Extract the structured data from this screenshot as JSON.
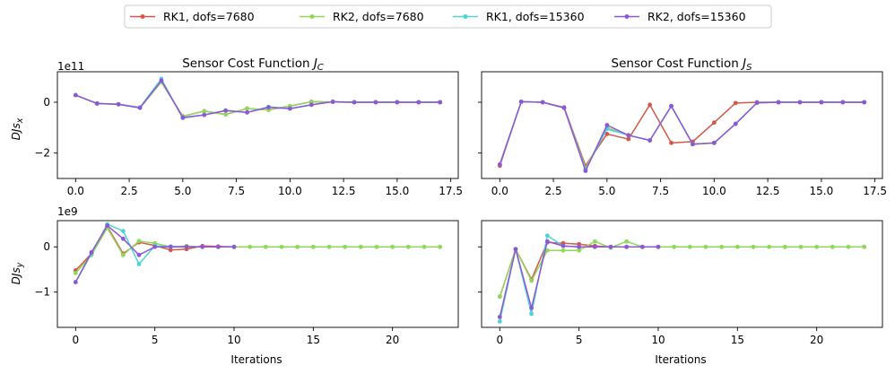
{
  "legend": {
    "entries": [
      {
        "label": "RK1, dofs=7680",
        "color": "#d4574a"
      },
      {
        "label": "RK2, dofs=7680",
        "color": "#8fd85a"
      },
      {
        "label": "RK1, dofs=15360",
        "color": "#4fd2d8"
      },
      {
        "label": "RK2, dofs=15360",
        "color": "#8f57d6"
      }
    ]
  },
  "chart_data": [
    {
      "type": "line",
      "title": "Sensor Cost Function J_C",
      "title_main": "Sensor Cost Function ",
      "title_sym": "J",
      "title_sub": "C",
      "ylabel_main": "DJs",
      "ylabel_sub": "x",
      "offset_base": "1e",
      "offset_exp": "11",
      "xlim": [
        -0.85,
        17.85
      ],
      "ylim": [
        -3.0,
        1.2
      ],
      "xticks": [
        0,
        2.5,
        5,
        7.5,
        10,
        12.5,
        15,
        17.5
      ],
      "xtick_labels": [
        "0.0",
        "2.5",
        "5.0",
        "7.5",
        "10.0",
        "12.5",
        "15.0",
        "17.5"
      ],
      "yticks": [
        -2,
        0
      ],
      "ytick_labels": [
        "−2",
        "0"
      ],
      "series": [
        {
          "x": [
            0,
            1,
            2,
            3,
            4,
            5,
            6,
            7,
            8,
            9,
            10,
            11,
            12,
            13,
            14,
            15,
            16,
            17
          ],
          "y": [
            0.28,
            -0.05,
            -0.08,
            -0.22,
            0.8,
            -0.55,
            -0.35,
            -0.48,
            -0.25,
            -0.3,
            -0.15,
            0.02,
            0.01,
            0,
            0,
            0,
            0,
            0
          ]
        },
        {
          "x": [
            0,
            1,
            2,
            3,
            4,
            5,
            6,
            7,
            8,
            9,
            10,
            11,
            12,
            13,
            14,
            15,
            16,
            17
          ],
          "y": [
            0.28,
            -0.05,
            -0.08,
            -0.22,
            0.8,
            -0.55,
            -0.35,
            -0.48,
            -0.25,
            -0.3,
            -0.15,
            0.02,
            0.01,
            0,
            0,
            0,
            0,
            0
          ]
        },
        {
          "x": [
            0,
            1,
            2,
            3,
            4,
            5,
            6,
            7,
            8,
            9,
            10,
            11,
            12,
            13,
            14,
            15,
            16,
            17
          ],
          "y": [
            0.28,
            -0.05,
            -0.08,
            -0.2,
            0.92,
            -0.62,
            -0.5,
            -0.32,
            -0.4,
            -0.18,
            -0.25,
            -0.1,
            0.02,
            0,
            0,
            0,
            0,
            0
          ]
        },
        {
          "x": [
            0,
            1,
            2,
            3,
            4,
            5,
            6,
            7,
            8,
            9,
            10,
            11,
            12,
            13,
            14,
            15,
            16,
            17
          ],
          "y": [
            0.28,
            -0.05,
            -0.08,
            -0.22,
            0.85,
            -0.6,
            -0.5,
            -0.33,
            -0.4,
            -0.2,
            -0.25,
            -0.1,
            0.02,
            0,
            0,
            0,
            0,
            0
          ]
        }
      ]
    },
    {
      "type": "line",
      "title": "Sensor Cost Function J_S",
      "title_main": "Sensor Cost Function ",
      "title_sym": "J",
      "title_sub": "S",
      "xlim": [
        -0.85,
        17.85
      ],
      "ylim": [
        -3.0,
        1.2
      ],
      "xticks": [
        0,
        2.5,
        5,
        7.5,
        10,
        12.5,
        15,
        17.5
      ],
      "xtick_labels": [
        "0.0",
        "2.5",
        "5.0",
        "7.5",
        "10.0",
        "12.5",
        "15.0",
        "17.5"
      ],
      "yticks": [],
      "ytick_labels": [],
      "series": [
        {
          "x": [
            0,
            1,
            2,
            3,
            4,
            5,
            6,
            7,
            8,
            9,
            10,
            11,
            12,
            13,
            14,
            15,
            16,
            17
          ],
          "y": [
            -2.5,
            0.02,
            0.0,
            -0.2,
            -2.5,
            -1.25,
            -1.45,
            -0.1,
            -1.6,
            -1.55,
            -0.8,
            -0.03,
            0.0,
            0,
            0,
            0,
            0,
            0
          ]
        },
        {
          "x": [
            0,
            1,
            2,
            3,
            4,
            5,
            6,
            7,
            8,
            9,
            10,
            11,
            12,
            13,
            14,
            15,
            16,
            17
          ],
          "y": [
            -2.45,
            0.02,
            0.0,
            -0.22,
            -2.6,
            -1.0,
            -1.3,
            -1.5,
            -0.15,
            -1.65,
            -1.6,
            -0.85,
            -0.02,
            0,
            0,
            0,
            0,
            0
          ]
        },
        {
          "x": [
            0,
            1,
            2,
            3,
            4,
            5,
            6,
            7,
            8,
            9,
            10,
            11,
            12,
            13,
            14,
            15,
            16,
            17
          ],
          "y": [
            -2.45,
            0.02,
            0.0,
            -0.22,
            -2.65,
            -1.05,
            -1.3,
            -1.5,
            -0.15,
            -1.65,
            -1.6,
            -0.85,
            -0.02,
            0,
            0,
            0,
            0,
            0
          ]
        },
        {
          "x": [
            0,
            1,
            2,
            3,
            4,
            5,
            6,
            7,
            8,
            9,
            10,
            11,
            12,
            13,
            14,
            15,
            16,
            17
          ],
          "y": [
            -2.45,
            0.02,
            0.0,
            -0.22,
            -2.7,
            -0.9,
            -1.3,
            -1.5,
            -0.15,
            -1.65,
            -1.6,
            -0.85,
            -0.02,
            0,
            0,
            0,
            0,
            0
          ]
        }
      ]
    },
    {
      "type": "line",
      "ylabel_main": "DJs",
      "ylabel_sub": "y",
      "xlabel": "Iterations",
      "offset_base": "1e",
      "offset_exp": "9",
      "xlim": [
        -1.15,
        24.15
      ],
      "ylim": [
        -1.78,
        0.58
      ],
      "xticks": [
        0,
        5,
        10,
        15,
        20
      ],
      "xtick_labels": [
        "0",
        "5",
        "10",
        "15",
        "20"
      ],
      "yticks": [
        -1,
        0
      ],
      "ytick_labels": [
        "−1",
        "0"
      ],
      "series": [
        {
          "x": [
            0,
            1,
            2,
            3,
            4,
            5,
            6,
            7,
            8,
            9,
            10
          ],
          "y": [
            -0.52,
            -0.15,
            0.45,
            -0.15,
            0.1,
            0.03,
            -0.07,
            -0.05,
            0.02,
            0.01,
            0.0
          ]
        },
        {
          "x": [
            0,
            1,
            2,
            3,
            4,
            5,
            6,
            7,
            8,
            9,
            10,
            11,
            12,
            13,
            14,
            15,
            16,
            17,
            18,
            19,
            20,
            21,
            22,
            23
          ],
          "y": [
            -0.58,
            -0.18,
            0.42,
            -0.18,
            0.13,
            0.08,
            0.0,
            0.02,
            0.0,
            0.0,
            0.0,
            0,
            0,
            0,
            0,
            0,
            0,
            0,
            0,
            0,
            0,
            0,
            0,
            0
          ]
        },
        {
          "x": [
            0,
            1,
            2,
            3,
            4,
            5,
            6,
            7,
            8,
            9,
            10
          ],
          "y": [
            -0.78,
            -0.15,
            0.5,
            0.35,
            -0.38,
            0.02,
            0.01,
            0.0,
            0.0,
            0.0,
            0.0
          ]
        },
        {
          "x": [
            0,
            1,
            2,
            3,
            4,
            5,
            6,
            7,
            8,
            9,
            10
          ],
          "y": [
            -0.78,
            -0.12,
            0.47,
            0.18,
            -0.18,
            0.0,
            0.0,
            0.0,
            0.0,
            0.0,
            0.0
          ]
        }
      ]
    },
    {
      "type": "line",
      "xlabel": "Iterations",
      "xlim": [
        -1.15,
        24.15
      ],
      "ylim": [
        -1.78,
        0.58
      ],
      "xticks": [
        0,
        5,
        10,
        15,
        20
      ],
      "xtick_labels": [
        "0",
        "5",
        "10",
        "15",
        "20"
      ],
      "yticks": [],
      "ytick_labels": [],
      "series": [
        {
          "x": [
            0,
            1,
            2,
            3,
            4,
            5,
            6,
            7,
            8,
            9,
            10
          ],
          "y": [
            -1.1,
            -0.05,
            -0.72,
            0.1,
            0.08,
            0.06,
            0.02,
            0.0,
            0.0,
            0.0,
            0.0
          ]
        },
        {
          "x": [
            0,
            1,
            2,
            3,
            4,
            5,
            6,
            7,
            8,
            9,
            10,
            11,
            12,
            13,
            14,
            15,
            16,
            17,
            18,
            19,
            20,
            21,
            22,
            23
          ],
          "y": [
            -1.1,
            -0.05,
            -0.75,
            -0.08,
            -0.08,
            -0.08,
            0.12,
            -0.02,
            0.12,
            0.0,
            0.0,
            0,
            0,
            0,
            0,
            0,
            0,
            0,
            0,
            0,
            0,
            0,
            0,
            0
          ]
        },
        {
          "x": [
            0,
            1,
            2,
            3,
            4,
            5,
            6,
            7,
            8,
            9,
            10
          ],
          "y": [
            -1.65,
            -0.05,
            -1.48,
            0.25,
            0.02,
            0.0,
            0.0,
            0.0,
            0.0,
            0.0,
            0.0
          ]
        },
        {
          "x": [
            0,
            1,
            2,
            3,
            4,
            5,
            6,
            7,
            8,
            9,
            10
          ],
          "y": [
            -1.55,
            -0.05,
            -1.35,
            0.12,
            0.02,
            0.0,
            0.0,
            0.0,
            0.0,
            0.0,
            0.0
          ]
        }
      ]
    }
  ]
}
